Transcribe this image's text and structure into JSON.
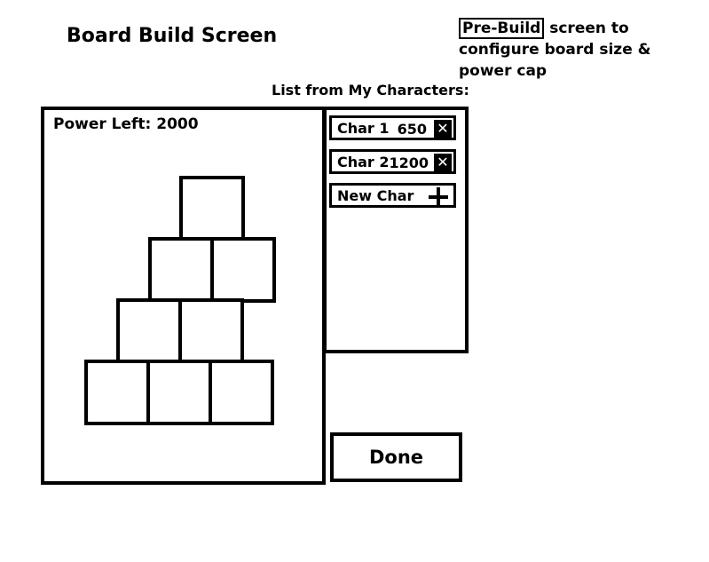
{
  "header": {
    "title": "Board Build Screen"
  },
  "annotation": {
    "highlight": "Pre-Build",
    "rest": "screen to configure board size & power cap"
  },
  "character_list": {
    "caption": "List from My Characters:",
    "items": [
      {
        "name": "Char 1",
        "power": "650",
        "remove_icon": "close-icon"
      },
      {
        "name": "Char 2",
        "power": "1200",
        "remove_icon": "close-icon"
      }
    ],
    "new_label": "New Char",
    "new_icon": "plus-icon"
  },
  "board": {
    "power_left_label": "Power Left: 2000",
    "rows": [
      1,
      2,
      2,
      3
    ]
  },
  "actions": {
    "done_label": "Done"
  }
}
